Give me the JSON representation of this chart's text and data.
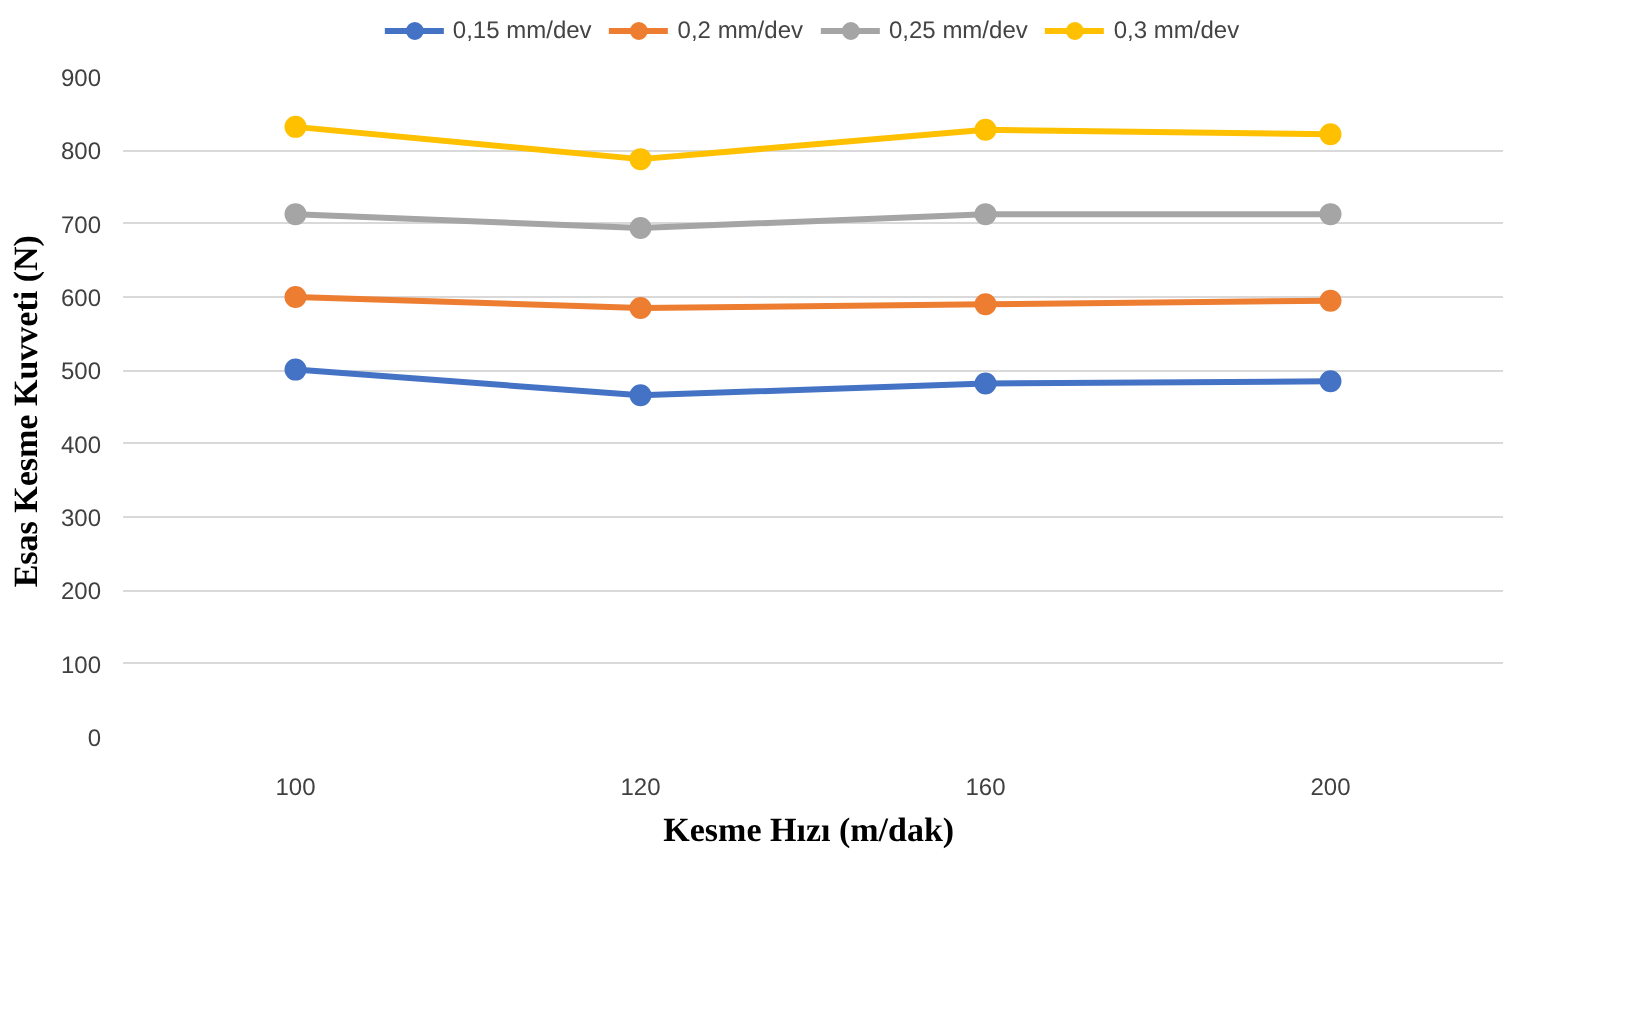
{
  "chart_data": {
    "type": "line",
    "xlabel": "Kesme Hızı  (m/dak)",
    "ylabel": "Esas Kesme Kuvveti  (N)",
    "categories": [
      "100",
      "120",
      "160",
      "200"
    ],
    "series": [
      {
        "name": "0,15 mm/dev",
        "color": "#4472c4",
        "values": [
          501,
          466,
          482,
          485
        ]
      },
      {
        "name": "0,2 mm/dev",
        "color": "#ed7d31",
        "values": [
          600,
          585,
          590,
          595
        ]
      },
      {
        "name": "0,25 mm/dev",
        "color": "#a5a5a5",
        "values": [
          713,
          694,
          713,
          713
        ]
      },
      {
        "name": "0,3 mm/dev",
        "color": "#ffc000",
        "values": [
          832,
          788,
          828,
          822
        ]
      }
    ],
    "ylim": [
      0,
      900
    ],
    "yticks": [
      0,
      100,
      200,
      300,
      400,
      500,
      600,
      700,
      800,
      900
    ],
    "grid": "y",
    "legend": "top",
    "marker": "circle",
    "line_style": "solid"
  }
}
